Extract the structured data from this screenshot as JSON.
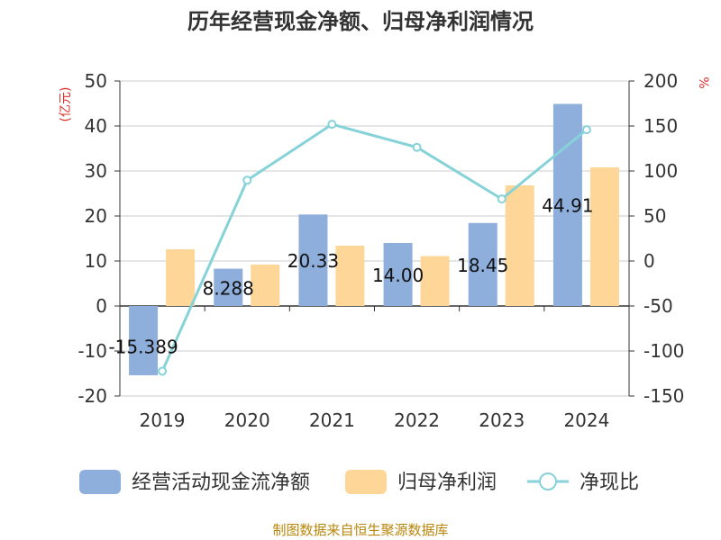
{
  "chart_data": {
    "type": "bar",
    "title": "历年经营现金净额、归母净利润情况",
    "categories": [
      "2019",
      "2020",
      "2021",
      "2022",
      "2023",
      "2024"
    ],
    "series": [
      {
        "name": "经营活动现金流净额",
        "kind": "bar",
        "axis": "left",
        "color": "#8eaedc",
        "values": [
          -15.389,
          8.288,
          20.33,
          14.0,
          18.45,
          44.91
        ],
        "labels": [
          "-15.389",
          "8.288",
          "20.33",
          "14.00",
          "18.45",
          "44.91"
        ]
      },
      {
        "name": "归母净利润",
        "kind": "bar",
        "axis": "left",
        "color": "#fdd698",
        "values": [
          12.6,
          9.2,
          13.4,
          11.1,
          26.8,
          30.8
        ]
      },
      {
        "name": "净现比",
        "kind": "line",
        "axis": "right",
        "color": "#86d2d9",
        "values": [
          -122.5,
          89.7,
          151.9,
          126.3,
          68.9,
          145.9
        ]
      }
    ],
    "y_left": {
      "unit": "(亿元)",
      "ylim": [
        -20,
        50
      ],
      "ticks": [
        -20,
        -10,
        0,
        10,
        20,
        30,
        40,
        50
      ]
    },
    "y_right": {
      "unit": "%",
      "ylim": [
        -150,
        200
      ],
      "ticks": [
        -150,
        -100,
        -50,
        0,
        50,
        100,
        150,
        200
      ]
    },
    "grid": true,
    "legend_position": "bottom"
  },
  "source": "制图数据来自恒生聚源数据库"
}
